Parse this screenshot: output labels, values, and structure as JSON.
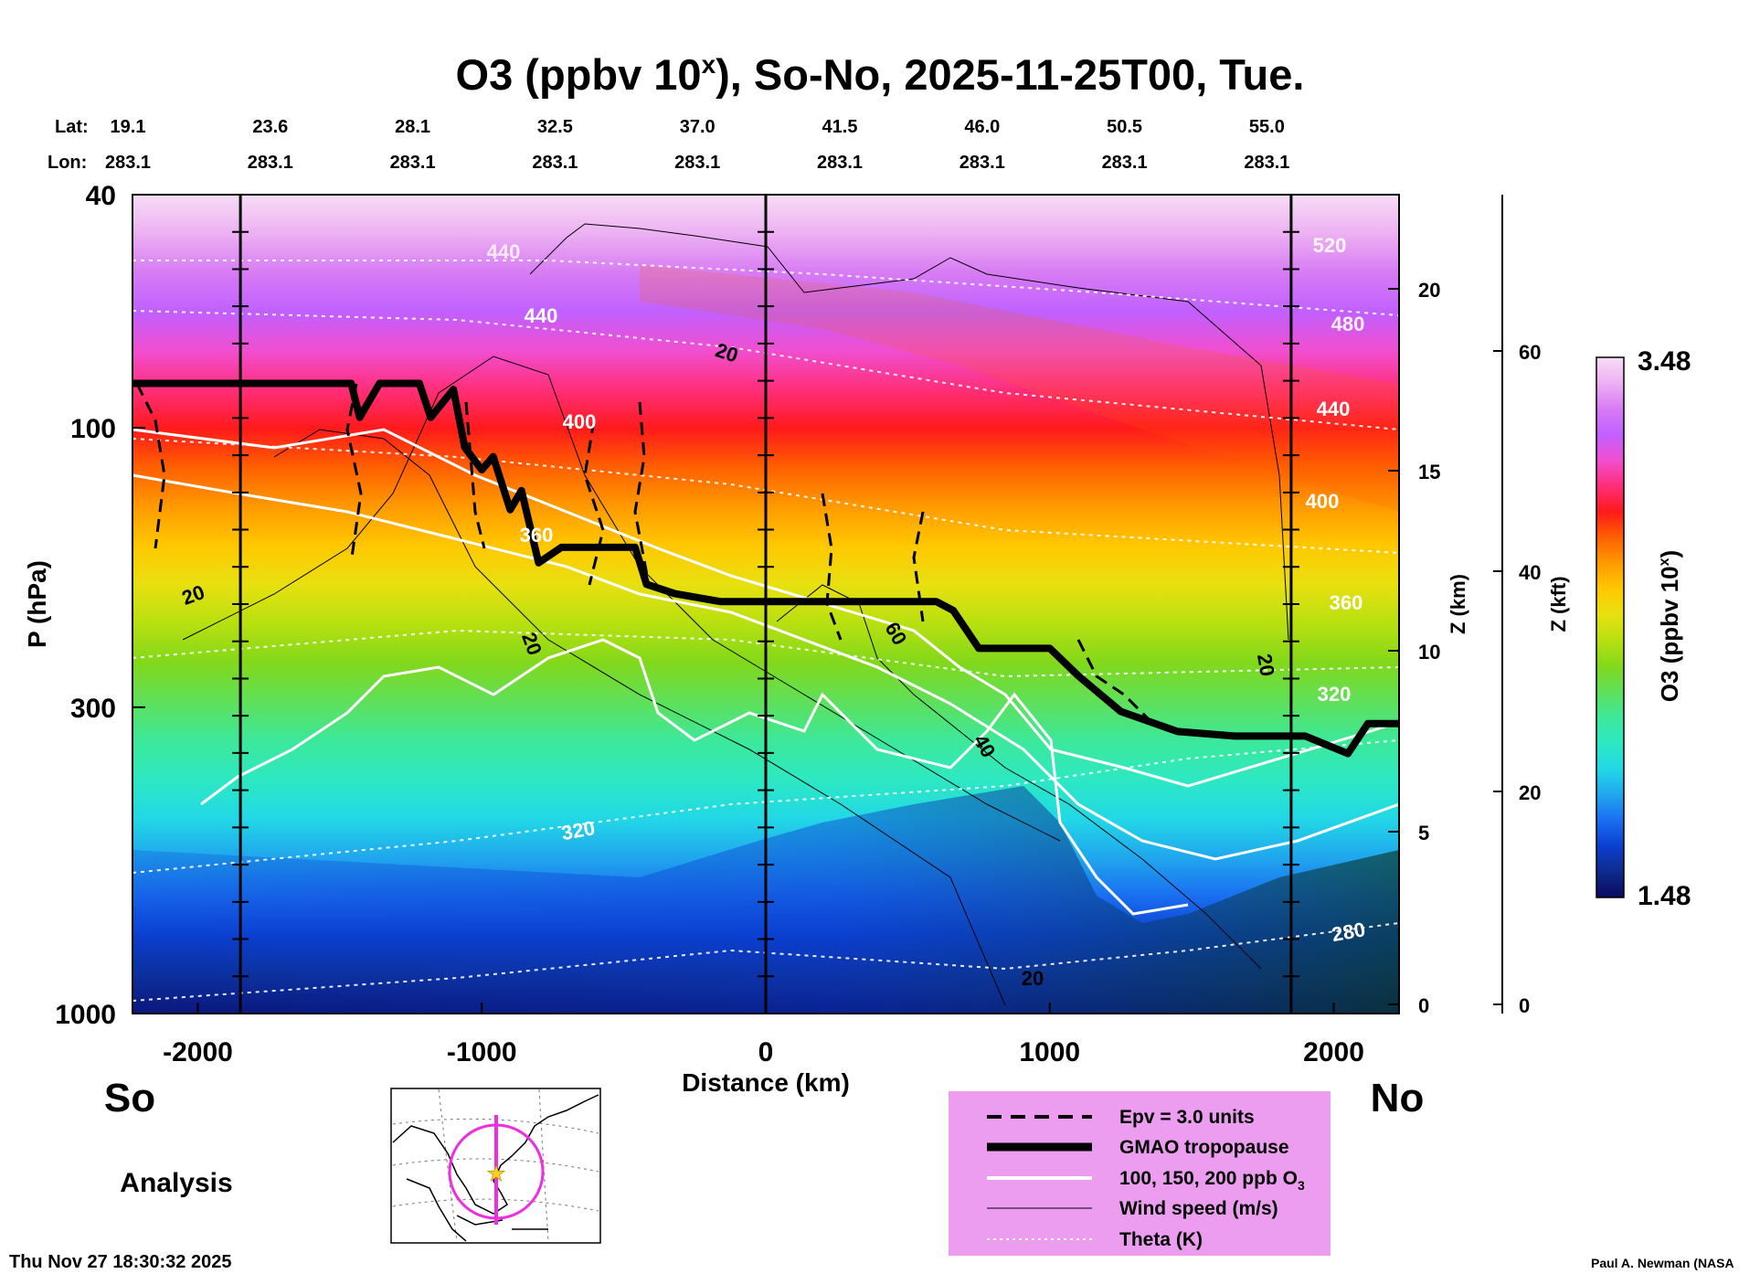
{
  "chart_data": {
    "type": "heatmap",
    "title": "O3 (ppbv 10",
    "title_superscript": "x",
    "title_rest": "), So-No, 2025-11-25T00, Tue.",
    "xlabel": "Distance (km)",
    "ylabel": "P (hPa)",
    "right_axis1_label": "Z (km)",
    "right_axis2_label": "Z (kft)",
    "colorbar_label": "O3 (ppbv 10",
    "colorbar_label_sup": "x",
    "colorbar_label_end": ")",
    "colorbar_max": "3.48",
    "colorbar_min": "1.48",
    "colorbar_range": [
      1.48,
      3.48
    ],
    "colorbar_colors": [
      "#0a0a60",
      "#0d2b8c",
      "#0b3fd0",
      "#1a6ef0",
      "#20a6ee",
      "#22d8e6",
      "#2de8c2",
      "#3ce89a",
      "#5fe05a",
      "#82d81a",
      "#b8e010",
      "#e8e010",
      "#ffc800",
      "#ff9a00",
      "#ff6000",
      "#ff1a1a",
      "#ff2e7a",
      "#f04fd0",
      "#c060ff",
      "#d87cf4",
      "#ecb0f2",
      "#f8dcf6"
    ],
    "xlim": [
      -2230,
      2230
    ],
    "ylim_hpa": [
      1000,
      40
    ],
    "x_ticks": [
      "-2000",
      "-1000",
      "0",
      "1000",
      "2000"
    ],
    "x_tick_values": [
      -2000,
      -1000,
      0,
      1000,
      2000
    ],
    "y_ticks": [
      "1000",
      "300",
      "100",
      "40"
    ],
    "y_tick_values": [
      1000,
      300,
      100,
      40
    ],
    "z_km_ticks": [
      "0",
      "5",
      "10",
      "15",
      "20"
    ],
    "z_kft_ticks": [
      "0",
      "20",
      "40",
      "60"
    ],
    "lat_row_label": "Lat:",
    "lon_row_label": "Lon:",
    "lat_values": [
      "19.1",
      "23.6",
      "28.1",
      "32.5",
      "37.0",
      "41.5",
      "46.0",
      "50.5",
      "55.0"
    ],
    "lon_values": [
      "283.1",
      "283.1",
      "283.1",
      "283.1",
      "283.1",
      "283.1",
      "283.1",
      "283.1",
      "283.1"
    ],
    "vertical_markers_km": [
      -1850,
      0,
      1850
    ],
    "tropopause": {
      "distance_km": [
        -2230,
        -1460,
        -1430,
        -1360,
        -1220,
        -1180,
        -1100,
        -1060,
        -1000,
        -960,
        -900,
        -860,
        -800,
        -720,
        -460,
        -420,
        -320,
        -160,
        0,
        400,
        600,
        660,
        750,
        1000,
        1100,
        1250,
        1450,
        1650,
        1900,
        2050,
        2120,
        2230
      ],
      "pressure_hpa": [
        84,
        84,
        96,
        84,
        84,
        96,
        86,
        108,
        118,
        112,
        138,
        128,
        170,
        160,
        160,
        185,
        192,
        198,
        198,
        198,
        198,
        205,
        238,
        238,
        265,
        305,
        330,
        336,
        336,
        360,
        320,
        320
      ]
    },
    "contour_labels": [
      "440",
      "400",
      "360",
      "320",
      "280",
      "20",
      "20",
      "20",
      "60",
      "40",
      "20",
      "20",
      "520",
      "480",
      "440",
      "400",
      "360",
      "320",
      "440"
    ],
    "legend": [
      {
        "label": "Epv = 3.0 units",
        "style": "dashed"
      },
      {
        "label": "GMAO tropopause",
        "style": "thick"
      },
      {
        "label": "100, 150, 200 ppb O",
        "sub": "3",
        "style": "white"
      },
      {
        "label": "Wind speed (m/s)",
        "style": "thin"
      },
      {
        "label": "Theta (K)",
        "style": "dotted"
      }
    ],
    "legend_position": "bottom-right",
    "endpoint_south": "So",
    "endpoint_north": "No",
    "analysis_label": "Analysis",
    "colors": {
      "legend_bg": "#ec9df0",
      "map_line": "#ee2ee0",
      "map_star": "#ffd020"
    }
  },
  "timestamp": "Thu Nov 27 18:30:32 2025",
  "credit": "Paul A. Newman (NASA"
}
